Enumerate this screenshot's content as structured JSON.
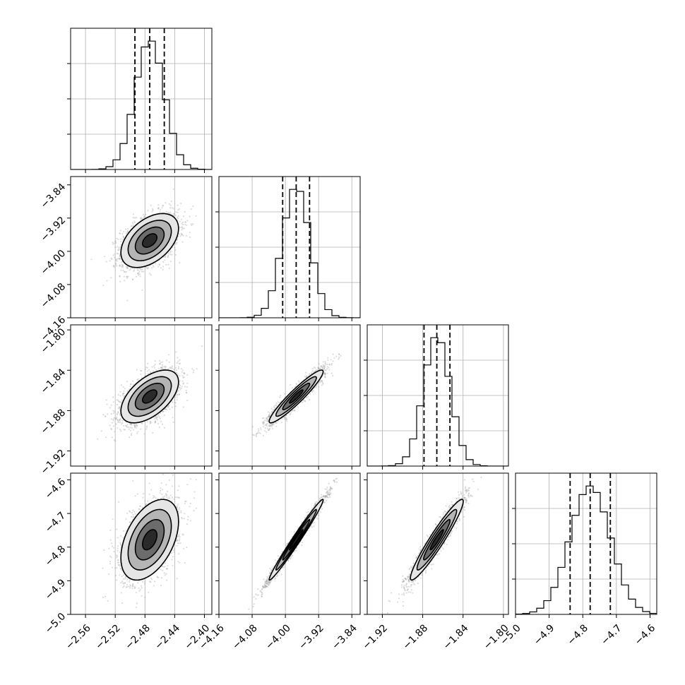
{
  "chart_data": {
    "type": "corner",
    "parameters": [
      {
        "mean": -2.4736,
        "sd": 0.0194,
        "range": [
          -2.58,
          -2.39
        ],
        "ticks": [
          -2.56,
          -2.52,
          -2.48,
          -2.44,
          -2.4
        ],
        "tick_labels": [
          "−2.56",
          "−2.52",
          "−2.48",
          "−2.44",
          "−2.40"
        ],
        "quantiles": [
          -2.4935,
          -2.4736,
          -2.454
        ]
      },
      {
        "mean": -3.974,
        "sd": 0.0325,
        "range": [
          -4.16,
          -3.82
        ],
        "ticks": [
          -4.16,
          -4.08,
          -4.0,
          -3.92,
          -3.84
        ],
        "tick_labels": [
          "−4.16",
          "−4.08",
          "−4.00",
          "−3.92",
          "−3.84"
        ],
        "quantiles": [
          -4.0065,
          -3.974,
          -3.9418
        ]
      },
      {
        "mean": -1.866,
        "sd": 0.0131,
        "range": [
          -1.935,
          -1.795
        ],
        "ticks": [
          -1.92,
          -1.88,
          -1.84,
          -1.8
        ],
        "tick_labels": [
          "−1.92",
          "−1.88",
          "−1.84",
          "−1.80"
        ],
        "quantiles": [
          -1.8787,
          -1.866,
          -1.853
        ]
      },
      {
        "mean": -4.778,
        "sd": 0.06,
        "range": [
          -5.0,
          -4.58
        ],
        "ticks": [
          -5.0,
          -4.9,
          -4.8,
          -4.7,
          -4.6
        ],
        "tick_labels": [
          "−5.0",
          "−4.9",
          "−4.8",
          "−4.7",
          "−4.6"
        ],
        "quantiles": [
          -4.8376,
          -4.778,
          -4.718
        ]
      }
    ],
    "correlations": [
      [
        1.0,
        0.45,
        0.55,
        0.45
      ],
      [
        0.45,
        1.0,
        0.94,
        0.985
      ],
      [
        0.55,
        0.94,
        1.0,
        0.95
      ],
      [
        0.45,
        0.985,
        0.95,
        1.0
      ]
    ],
    "hist_bins": 20,
    "grid": true,
    "contour_levels_sigma": [
      0.5,
      1.0,
      1.5,
      2.0
    ]
  }
}
